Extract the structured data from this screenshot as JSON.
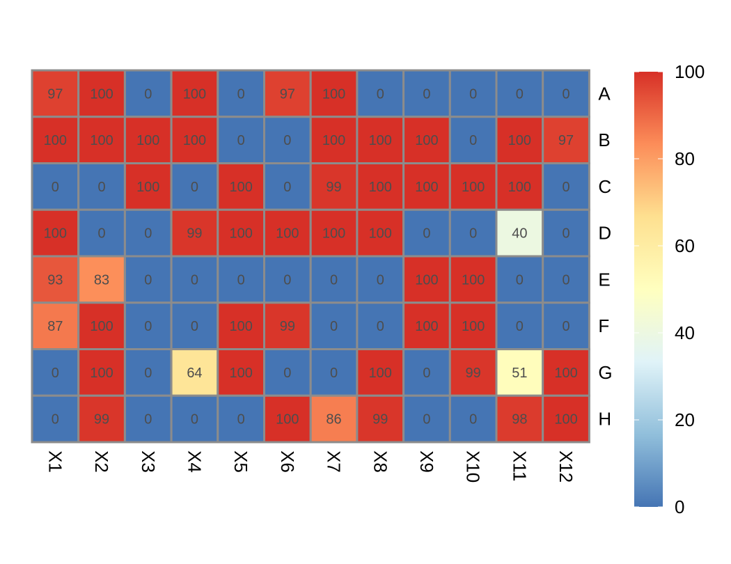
{
  "chart_data": {
    "type": "heatmap",
    "title": "",
    "xlabel": "",
    "ylabel": "",
    "columns": [
      "X1",
      "X2",
      "X3",
      "X4",
      "X5",
      "X6",
      "X7",
      "X8",
      "X9",
      "X10",
      "X11",
      "X12"
    ],
    "rows": [
      "A",
      "B",
      "C",
      "D",
      "E",
      "F",
      "G",
      "H"
    ],
    "values": [
      [
        97,
        100,
        0,
        100,
        0,
        97,
        100,
        0,
        0,
        0,
        0,
        0
      ],
      [
        100,
        100,
        100,
        100,
        0,
        0,
        100,
        100,
        100,
        0,
        100,
        97
      ],
      [
        0,
        0,
        100,
        0,
        100,
        0,
        99,
        100,
        100,
        100,
        100,
        0
      ],
      [
        100,
        0,
        0,
        99,
        100,
        100,
        100,
        100,
        0,
        0,
        40,
        0
      ],
      [
        93,
        83,
        0,
        0,
        0,
        0,
        0,
        0,
        100,
        100,
        0,
        0
      ],
      [
        87,
        100,
        0,
        0,
        100,
        99,
        0,
        0,
        100,
        100,
        0,
        0
      ],
      [
        0,
        100,
        0,
        64,
        100,
        0,
        0,
        100,
        0,
        99,
        51,
        100
      ],
      [
        0,
        99,
        0,
        0,
        0,
        100,
        86,
        99,
        0,
        0,
        98,
        100
      ]
    ],
    "color_range": [
      0,
      100
    ],
    "color_scale": [
      "#4575b4",
      "#91bfdb",
      "#e0f3f8",
      "#ffffbf",
      "#fee090",
      "#fc8d59",
      "#d73027"
    ],
    "legend": {
      "position": "right",
      "ticks": [
        "0",
        "20",
        "40",
        "60",
        "80",
        "100"
      ]
    },
    "cell_border_color": "#8c8c8c",
    "show_cell_values": true
  }
}
